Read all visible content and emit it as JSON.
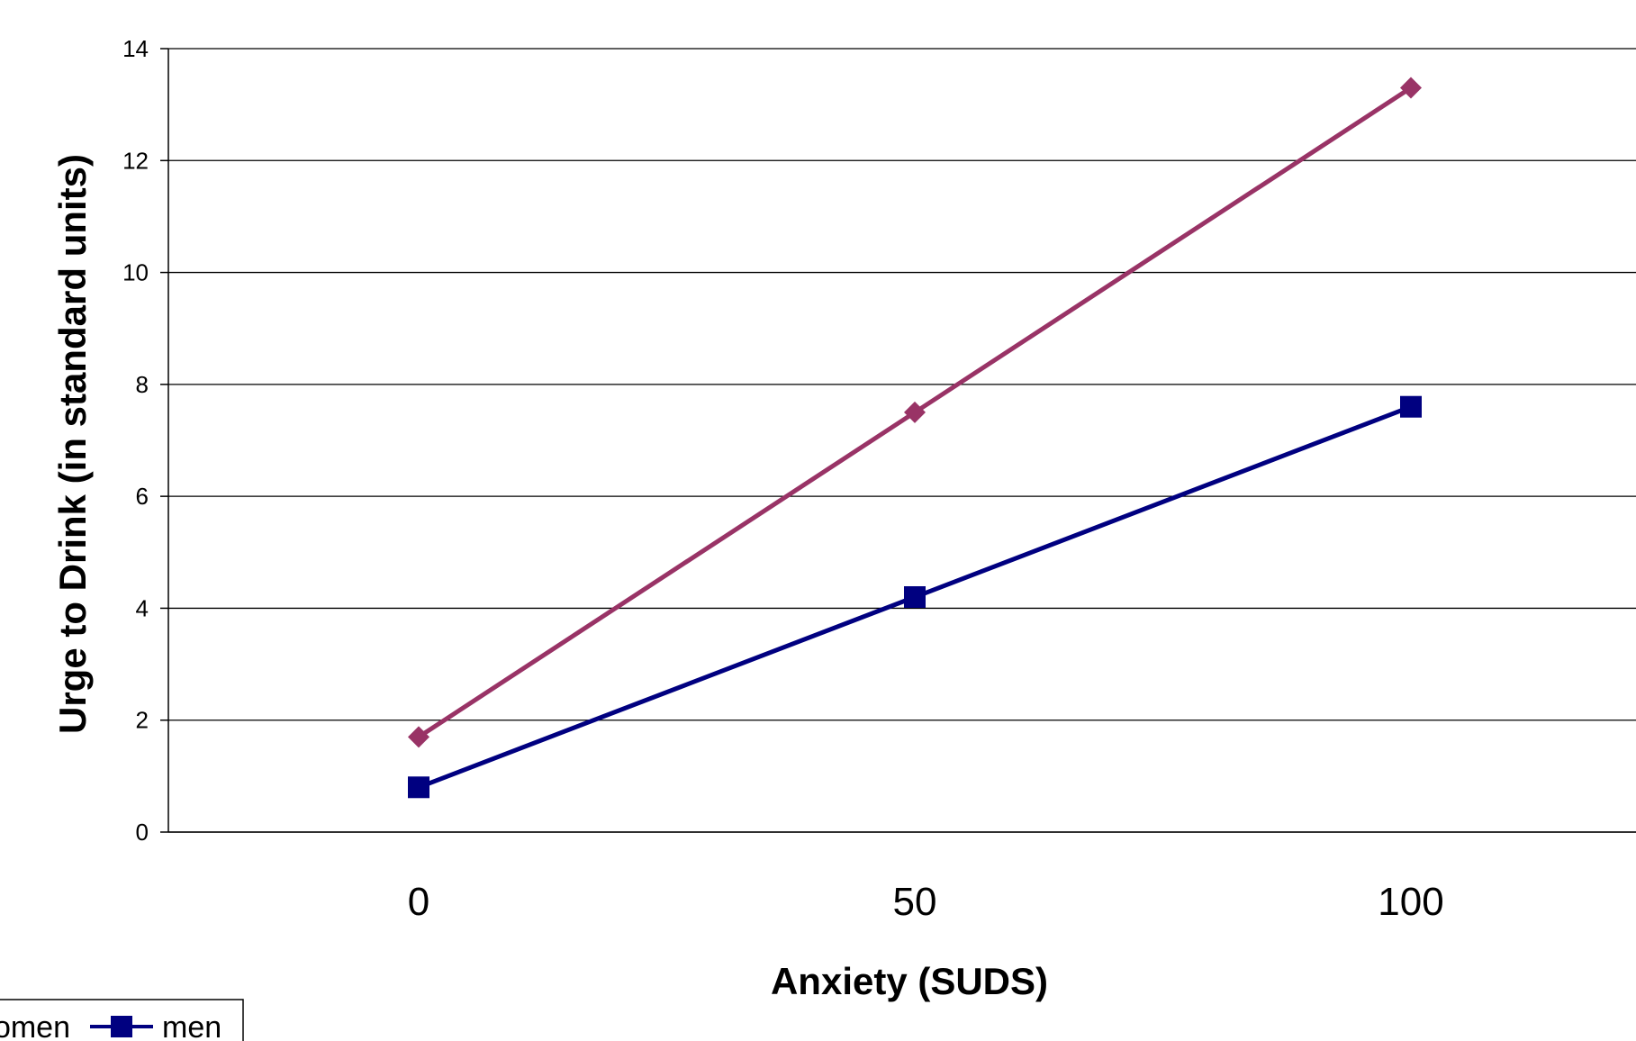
{
  "chart_data": {
    "type": "line",
    "title": "",
    "xlabel": "Anxiety (SUDS)",
    "ylabel": "Urge to Drink (in standard units)",
    "x": [
      0,
      50,
      100
    ],
    "x_tick_labels": [
      "0",
      "50",
      "100"
    ],
    "ylim": [
      0,
      14
    ],
    "y_ticks": [
      0,
      2,
      4,
      6,
      8,
      10,
      12,
      14
    ],
    "y_tick_labels": [
      "0",
      "2",
      "4",
      "6",
      "8",
      "10",
      "12",
      "14"
    ],
    "grid": true,
    "legend_position": "bottom",
    "series": [
      {
        "name": "women",
        "legend_visible_text": "omen",
        "values": [
          1.7,
          7.5,
          13.3
        ],
        "color": "#993366",
        "marker": "diamond"
      },
      {
        "name": "men",
        "legend_visible_text": "men",
        "values": [
          0.8,
          4.2,
          7.6
        ],
        "color": "#000080",
        "marker": "square"
      }
    ]
  }
}
